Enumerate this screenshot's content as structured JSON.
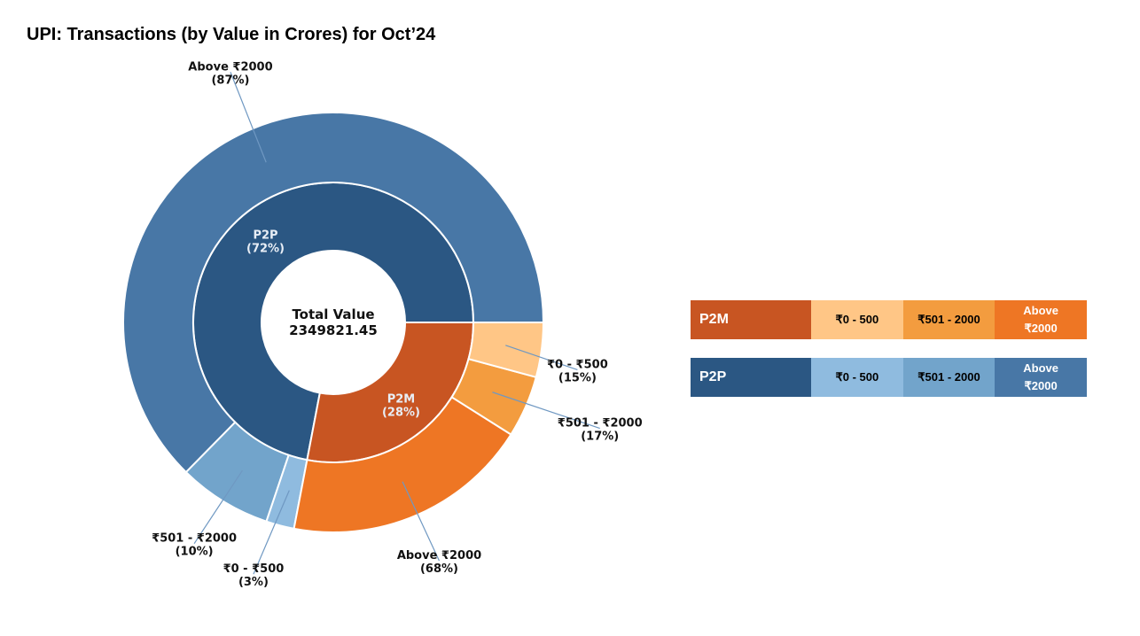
{
  "title": "UPI: Transactions (by Value in Crores) for Oct’24",
  "chart_data": {
    "type": "pie",
    "subtype": "nested-donut",
    "center_label": "Total Value",
    "total": "2349821.45",
    "inner": [
      {
        "name": "P2P",
        "percent": 72,
        "label": "P2P",
        "pct_label": "(72%)",
        "color": "#2b5783"
      },
      {
        "name": "P2M",
        "percent": 28,
        "label": "P2M",
        "pct_label": "(28%)",
        "color": "#c85522"
      }
    ],
    "outer": [
      {
        "parent": "P2P",
        "name": "Above ₹2000",
        "percent": 87,
        "label": "Above ₹2000",
        "pct_label": "(87%)",
        "color": "#4877a6"
      },
      {
        "parent": "P2P",
        "name": "₹501 - ₹2000",
        "percent": 10,
        "label": "₹501 - ₹2000",
        "pct_label": "(10%)",
        "color": "#72a4cb"
      },
      {
        "parent": "P2P",
        "name": "₹0 - ₹500",
        "percent": 3,
        "label": "₹0 - ₹500",
        "pct_label": "(3%)",
        "color": "#8fbbdf"
      },
      {
        "parent": "P2M",
        "name": "Above ₹2000",
        "percent": 68,
        "label": "Above ₹2000",
        "pct_label": "(68%)",
        "color": "#ee7624"
      },
      {
        "parent": "P2M",
        "name": "₹501 - ₹2000",
        "percent": 17,
        "label": "₹501 - ₹2000",
        "pct_label": "(17%)",
        "color": "#f39c3f"
      },
      {
        "parent": "P2M",
        "name": "₹0 - ₹500",
        "percent": 15,
        "label": "₹0 - ₹500",
        "pct_label": "(15%)",
        "color": "#ffc686"
      }
    ]
  },
  "legend": {
    "p2m": {
      "label": "P2M",
      "color": "#c85522",
      "bands": [
        {
          "label": "₹0 - 500",
          "color": "#ffc686"
        },
        {
          "label": "₹501 - 2000",
          "color": "#f39c3f"
        },
        {
          "label": "Above\n₹2000",
          "color": "#ee7624"
        }
      ]
    },
    "p2p": {
      "label": "P2P",
      "color": "#2b5783",
      "bands": [
        {
          "label": "₹0 - 500",
          "color": "#8fbbdf"
        },
        {
          "label": "₹501 - 2000",
          "color": "#72a4cb"
        },
        {
          "label": "Above\n₹2000",
          "color": "#4877a6"
        }
      ]
    }
  }
}
